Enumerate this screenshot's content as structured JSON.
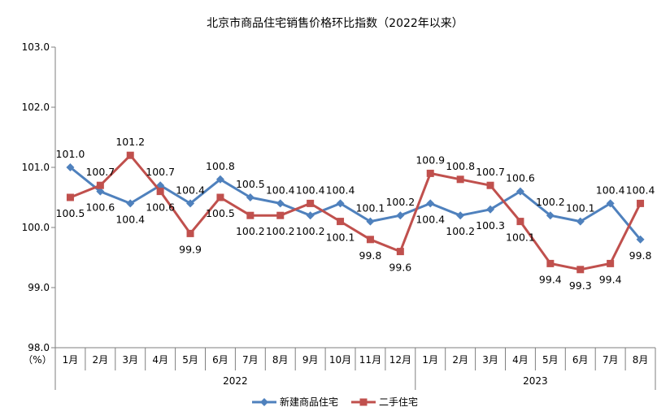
{
  "chart_data": {
    "type": "line",
    "title": "北京市商品住宅销售价格环比指数（2022年以来）",
    "ylabel": "（%）",
    "ylim": [
      98.0,
      103.0
    ],
    "yticks": [
      "103.0",
      "102.0",
      "101.0",
      "100.0",
      "99.0",
      "98.0"
    ],
    "grid": false,
    "legend": "bottom",
    "categories": [
      "1月",
      "2月",
      "3月",
      "4月",
      "5月",
      "6月",
      "7月",
      "8月",
      "9月",
      "10月",
      "11月",
      "12月",
      "1月",
      "2月",
      "3月",
      "4月",
      "5月",
      "6月",
      "7月",
      "8月"
    ],
    "groups": [
      {
        "label": "2022",
        "count": 12
      },
      {
        "label": "2023",
        "count": 8
      }
    ],
    "series": [
      {
        "name": "新建商品住宅",
        "color": "#4F81BD",
        "marker": "diamond",
        "values": [
          101.0,
          100.6,
          100.4,
          100.7,
          100.4,
          100.8,
          100.5,
          100.4,
          100.2,
          100.4,
          100.1,
          100.2,
          100.4,
          100.2,
          100.3,
          100.6,
          100.2,
          100.1,
          100.4,
          99.8
        ]
      },
      {
        "name": "二手住宅",
        "color": "#C0504D",
        "marker": "square",
        "values": [
          100.5,
          100.7,
          101.2,
          100.6,
          99.9,
          100.5,
          100.2,
          100.2,
          100.4,
          100.1,
          99.8,
          99.6,
          100.9,
          100.8,
          100.7,
          100.1,
          99.4,
          99.3,
          99.4,
          100.4
        ]
      }
    ],
    "data_labels": {
      "新建商品住宅": [
        "101.0",
        "100.6",
        "100.4",
        "100.7",
        "100.4",
        "100.8",
        "100.5",
        "100.4",
        "100.2",
        "100.4",
        "100.1",
        "100.2",
        "100.4",
        "100.2",
        "100.3",
        "100.6",
        "100.2",
        "100.1",
        "100.4",
        "99.8"
      ],
      "二手住宅": [
        "100.5",
        "100.7",
        "101.2",
        "100.6",
        "99.9",
        "100.5",
        "100.2",
        "100.2",
        "100.4",
        "100.1",
        "99.8",
        "99.6",
        "100.9",
        "100.8",
        "100.7",
        "100.1",
        "99.4",
        "99.3",
        "99.4",
        "100.4"
      ]
    }
  }
}
